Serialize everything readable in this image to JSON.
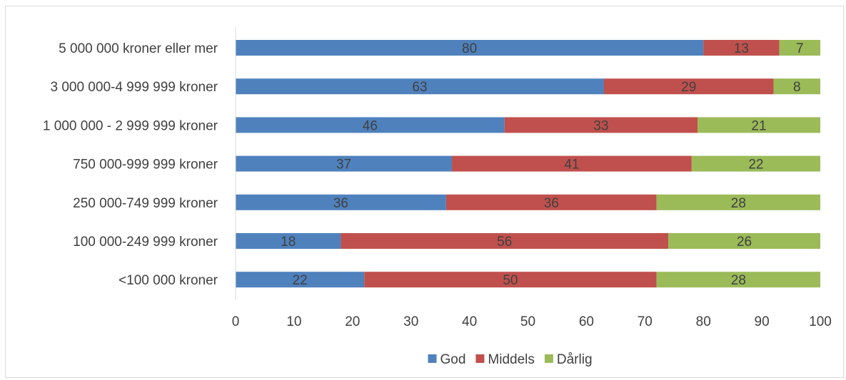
{
  "chart_data": {
    "type": "bar",
    "orientation": "horizontal",
    "stacked": true,
    "categories": [
      "5 000 000 kroner eller mer",
      "3 000 000-4 999 999 kroner",
      "1 000 000 - 2 999 999 kroner",
      "750 000-999 999 kroner",
      "250 000-749 999 kroner",
      "100 000-249 999 kroner",
      "<100 000 kroner"
    ],
    "series": [
      {
        "name": "God",
        "color": "#4f81bd",
        "values": [
          80,
          63,
          46,
          37,
          36,
          18,
          22
        ]
      },
      {
        "name": "Middels",
        "color": "#c0504d",
        "values": [
          13,
          29,
          33,
          41,
          36,
          56,
          50
        ]
      },
      {
        "name": "Dårlig",
        "color": "#9bbb59",
        "values": [
          7,
          8,
          21,
          22,
          28,
          26,
          28
        ]
      }
    ],
    "xticks": [
      "0",
      "10",
      "20",
      "30",
      "40",
      "50",
      "60",
      "70",
      "80",
      "90",
      "100"
    ],
    "xlim": [
      0,
      100
    ],
    "title": "",
    "xlabel": "",
    "ylabel": "",
    "grid": false,
    "legend_position": "bottom",
    "show_data_labels": true
  }
}
